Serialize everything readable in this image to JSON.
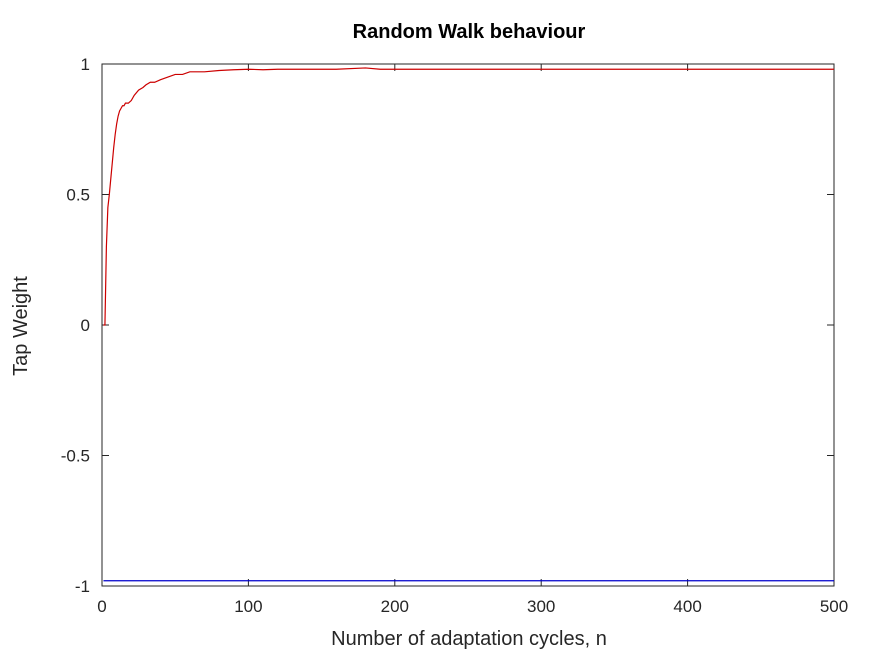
{
  "chart_data": {
    "type": "line",
    "title": "Random Walk behaviour",
    "xlabel": "Number of adaptation cycles, n",
    "ylabel": "Tap Weight",
    "xlim": [
      0,
      500
    ],
    "ylim": [
      -1,
      1
    ],
    "xticks": [
      0,
      100,
      200,
      300,
      400,
      500
    ],
    "xtick_labels": [
      "0",
      "100",
      "200",
      "300",
      "400",
      "500"
    ],
    "yticks": [
      -1,
      -0.5,
      0,
      0.5,
      1
    ],
    "ytick_labels": [
      "-1",
      "-0.5",
      "0",
      "0.5",
      "1"
    ],
    "grid": false,
    "series": [
      {
        "color": "#cc0000",
        "x": [
          1,
          2,
          3,
          4,
          5,
          6,
          7,
          8,
          9,
          10,
          11,
          12,
          13,
          14,
          15,
          16,
          17,
          18,
          20,
          22,
          25,
          28,
          30,
          33,
          36,
          40,
          45,
          50,
          55,
          60,
          70,
          80,
          90,
          100,
          110,
          120,
          140,
          160,
          180,
          190,
          200,
          250,
          300,
          350,
          400,
          450,
          500
        ],
        "y": [
          0.0,
          0.0,
          0.3,
          0.45,
          0.5,
          0.56,
          0.62,
          0.68,
          0.73,
          0.77,
          0.8,
          0.82,
          0.83,
          0.84,
          0.84,
          0.85,
          0.85,
          0.85,
          0.86,
          0.88,
          0.9,
          0.91,
          0.92,
          0.93,
          0.93,
          0.94,
          0.95,
          0.96,
          0.96,
          0.97,
          0.97,
          0.975,
          0.978,
          0.98,
          0.978,
          0.98,
          0.98,
          0.98,
          0.985,
          0.98,
          0.98,
          0.98,
          0.98,
          0.98,
          0.98,
          0.98,
          0.98
        ]
      },
      {
        "color": "#0000cc",
        "x": [
          1,
          500
        ],
        "y": [
          -0.98,
          -0.98
        ]
      }
    ]
  }
}
